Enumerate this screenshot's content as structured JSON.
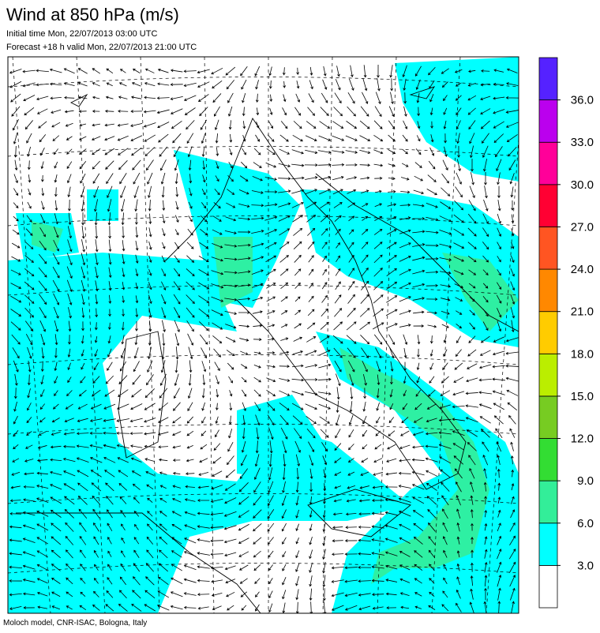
{
  "header": {
    "title": "Wind at 850 hPa (m/s)",
    "initial_time": "Initial time  Mon, 22/07/2013 03:00 UTC",
    "forecast": "Forecast +18 h valid  Mon, 22/07/2013 21:00 UTC"
  },
  "colorbar": {
    "colors": [
      "#ffffff",
      "#00ffff",
      "#33ee99",
      "#33dd33",
      "#77cc22",
      "#bbee00",
      "#ffcc00",
      "#ff8800",
      "#ff5522",
      "#ff0033",
      "#ff0099",
      "#bb00ee",
      "#5522ff"
    ],
    "ticks": [
      {
        "value": 3,
        "label": "3.0"
      },
      {
        "value": 6,
        "label": "6.0"
      },
      {
        "value": 9,
        "label": "9.0"
      },
      {
        "value": 12,
        "label": "12.0"
      },
      {
        "value": 15,
        "label": "15.0"
      },
      {
        "value": 18,
        "label": "18.0"
      },
      {
        "value": 21,
        "label": "21.0"
      },
      {
        "value": 24,
        "label": "24.0"
      },
      {
        "value": 27,
        "label": "27.0"
      },
      {
        "value": 30,
        "label": "30.0"
      },
      {
        "value": 33,
        "label": "33.0"
      },
      {
        "value": 36,
        "label": "36.0"
      }
    ]
  },
  "footer": {
    "credit": "Moloch model, CNR-ISAC, Bologna, Italy"
  }
}
